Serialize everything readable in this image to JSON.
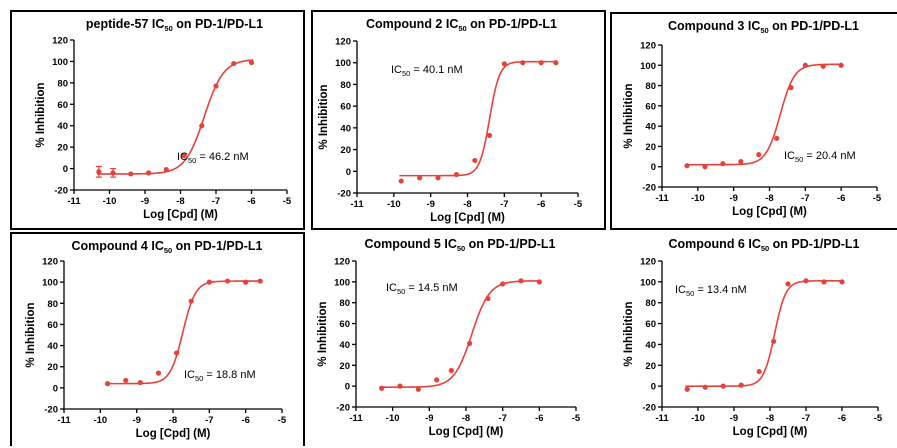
{
  "chart_data": [
    {
      "type": "scatter",
      "title_main": "peptide-57 IC",
      "title_sub": "50",
      "title_rest": " on PD-1/PD-L1",
      "xlabel": "Log [Cpd] (M)",
      "ylabel": "% Inhibition",
      "xlim": [
        -11,
        -5
      ],
      "ylim": [
        -20,
        120
      ],
      "xticks": [
        "-11",
        "-10",
        "-9",
        "-8",
        "-7",
        "-6",
        "-5"
      ],
      "yticks": [
        "-20",
        "0",
        "20",
        "40",
        "60",
        "80",
        "100",
        "120"
      ],
      "ic50_label": "IC",
      "ic50_sub": "50",
      "ic50_value": " = 46.2 nM",
      "logIC50": -7.33,
      "hill": 1.6,
      "bottom": -5,
      "top": 102,
      "x": [
        -10.3,
        -9.9,
        -9.4,
        -8.9,
        -8.4,
        -7.9,
        -7.4,
        -7.0,
        -6.5,
        -6.0
      ],
      "y": [
        -3,
        -4,
        -5,
        -4,
        -1,
        12,
        40,
        77,
        98,
        99
      ],
      "err": [
        5,
        4,
        0,
        0,
        0,
        0,
        0,
        0,
        0,
        0
      ]
    },
    {
      "type": "scatter",
      "title_main": "Compound 2 IC",
      "title_sub": "50",
      "title_rest": " on PD-1/PD-L1",
      "xlabel": "Log [Cpd] (M)",
      "ylabel": "% Inhibition",
      "xlim": [
        -11,
        -5
      ],
      "ylim": [
        -20,
        120
      ],
      "xticks": [
        "-11",
        "-10",
        "-9",
        "-8",
        "-7",
        "-6",
        "-5"
      ],
      "yticks": [
        "-20",
        "0",
        "20",
        "40",
        "60",
        "80",
        "100",
        "120"
      ],
      "ic50_label": "IC",
      "ic50_sub": "50",
      "ic50_value": " = 40.1 nM",
      "logIC50": -7.4,
      "hill": 3.2,
      "bottom": -4,
      "top": 101,
      "x": [
        -9.8,
        -9.3,
        -8.8,
        -8.3,
        -7.8,
        -7.4,
        -7.0,
        -6.5,
        -6.0,
        -5.6
      ],
      "y": [
        -9,
        -6,
        -6,
        -3,
        10,
        33,
        99,
        100,
        100,
        100
      ],
      "err": [
        0,
        0,
        0,
        0,
        0,
        0,
        0,
        0,
        0,
        0
      ]
    },
    {
      "type": "scatter",
      "title_main": "Compound 3 IC",
      "title_sub": "50",
      "title_rest": " on PD-1/PD-L1",
      "xlabel": "Log [Cpd] (M)",
      "ylabel": "% Inhibition",
      "xlim": [
        -11,
        -5
      ],
      "ylim": [
        -20,
        120
      ],
      "xticks": [
        "-11",
        "-10",
        "-9",
        "-8",
        "-7",
        "-6",
        "-5"
      ],
      "yticks": [
        "-20",
        "0",
        "20",
        "40",
        "60",
        "80",
        "100",
        "120"
      ],
      "ic50_label": "IC",
      "ic50_sub": "50",
      "ic50_value": " = 20.4 nM",
      "logIC50": -7.7,
      "hill": 2.2,
      "bottom": 2,
      "top": 101,
      "x": [
        -10.3,
        -9.8,
        -9.3,
        -8.8,
        -8.3,
        -7.8,
        -7.4,
        -7.0,
        -6.5,
        -6.0
      ],
      "y": [
        1,
        0,
        3,
        5,
        12,
        28,
        78,
        100,
        99,
        100
      ],
      "err": [
        0,
        0,
        0,
        0,
        0,
        0,
        0,
        0,
        0,
        0
      ]
    },
    {
      "type": "scatter",
      "title_main": "Compound 4 IC",
      "title_sub": "50",
      "title_rest": " on PD-1/PD-L1",
      "xlabel": "Log [Cpd] (M)",
      "ylabel": "% Inhibition",
      "xlim": [
        -11,
        -5
      ],
      "ylim": [
        -20,
        120
      ],
      "xticks": [
        "-11",
        "-10",
        "-9",
        "-8",
        "-7",
        "-6",
        "-5"
      ],
      "yticks": [
        "-20",
        "0",
        "20",
        "40",
        "60",
        "80",
        "100",
        "120"
      ],
      "ic50_label": "IC",
      "ic50_sub": "50",
      "ic50_value": " = 18.8 nM",
      "logIC50": -7.73,
      "hill": 2.5,
      "bottom": 4,
      "top": 101,
      "x": [
        -9.8,
        -9.3,
        -8.9,
        -8.4,
        -7.9,
        -7.5,
        -7.0,
        -6.5,
        -6.0,
        -5.6
      ],
      "y": [
        4,
        7,
        5,
        14,
        33,
        82,
        100,
        101,
        100,
        101
      ],
      "err": [
        0,
        0,
        0,
        0,
        0,
        0,
        0,
        0,
        0,
        0
      ]
    },
    {
      "type": "scatter",
      "title_main": "Compound 5 IC",
      "title_sub": "50",
      "title_rest": " on PD-1/PD-L1",
      "xlabel": "Log [Cpd] (M)",
      "ylabel": "% Inhibition",
      "xlim": [
        -11,
        -5
      ],
      "ylim": [
        -20,
        120
      ],
      "xticks": [
        "-11",
        "-10",
        "-9",
        "-8",
        "-7",
        "-6",
        "-5"
      ],
      "yticks": [
        "-20",
        "0",
        "20",
        "40",
        "60",
        "80",
        "100",
        "120"
      ],
      "ic50_label": "IC",
      "ic50_sub": "50",
      "ic50_value": " = 14.5 nM",
      "logIC50": -7.84,
      "hill": 1.8,
      "bottom": -1,
      "top": 101,
      "x": [
        -10.3,
        -9.8,
        -9.3,
        -8.8,
        -8.4,
        -7.9,
        -7.4,
        -7.0,
        -6.5,
        -6.0
      ],
      "y": [
        -2,
        0,
        -3,
        6,
        15,
        41,
        84,
        98,
        101,
        100
      ],
      "err": [
        0,
        0,
        0,
        0,
        0,
        0,
        0,
        0,
        0,
        0
      ]
    },
    {
      "type": "scatter",
      "title_main": "Compound 6 IC",
      "title_sub": "50",
      "title_rest": " on PD-1/PD-L1",
      "xlabel": "Log [Cpd] (M)",
      "ylabel": "% Inhibition",
      "xlim": [
        -11,
        -5
      ],
      "ylim": [
        -20,
        120
      ],
      "xticks": [
        "-11",
        "-10",
        "-9",
        "-8",
        "-7",
        "-6",
        "-5"
      ],
      "yticks": [
        "-20",
        "0",
        "20",
        "40",
        "60",
        "80",
        "100",
        "120"
      ],
      "ic50_label": "IC",
      "ic50_sub": "50",
      "ic50_value": " = 13.4 nM",
      "logIC50": -7.87,
      "hill": 2.8,
      "bottom": 0,
      "top": 101,
      "x": [
        -10.3,
        -9.8,
        -9.3,
        -8.8,
        -8.3,
        -7.9,
        -7.5,
        -7.0,
        -6.5,
        -6.0
      ],
      "y": [
        -3,
        -1,
        0,
        1,
        14,
        43,
        98,
        101,
        100,
        100
      ],
      "err": [
        0,
        0,
        0,
        0,
        0,
        0,
        0,
        0,
        0,
        0
      ]
    }
  ]
}
